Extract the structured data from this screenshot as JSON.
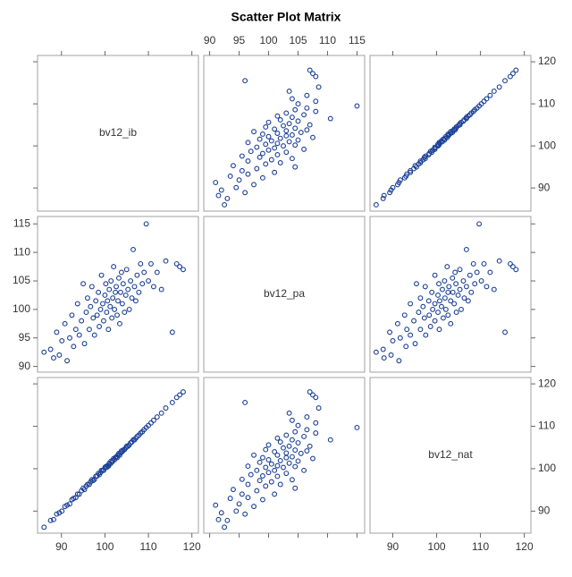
{
  "chart_data": {
    "type": "scatter_matrix",
    "title": "Scatter Plot Matrix",
    "color": "#1a3f96",
    "variables": [
      {
        "name": "bv12_ib",
        "lim": [
          84.5,
          121.5
        ],
        "ticks": [
          90,
          100,
          110,
          120
        ],
        "values": [
          86.0,
          87.5,
          88.2,
          88.9,
          89.5,
          90.1,
          90.8,
          91.3,
          91.9,
          92.4,
          92.8,
          93.3,
          93.7,
          94.1,
          94.6,
          95.0,
          95.3,
          95.7,
          96.0,
          96.4,
          96.7,
          97.0,
          97.3,
          97.6,
          97.9,
          98.2,
          98.5,
          98.7,
          99.0,
          99.2,
          99.5,
          99.7,
          100.0,
          100.2,
          100.4,
          100.6,
          100.8,
          101.0,
          101.2,
          101.4,
          101.6,
          101.8,
          102.0,
          102.2,
          102.4,
          102.6,
          102.8,
          103.0,
          103.2,
          103.4,
          103.6,
          103.8,
          104.0,
          104.2,
          104.5,
          104.8,
          105.0,
          105.3,
          105.6,
          105.9,
          106.2,
          106.5,
          106.8,
          107.1,
          107.4,
          107.8,
          108.2,
          108.6,
          109.0,
          109.5,
          110.0,
          110.6,
          111.2,
          112.0,
          113.0,
          114.0,
          115.5,
          116.5,
          117.2,
          118.0
        ]
      },
      {
        "name": "bv12_pa",
        "lim": [
          89,
          116.3
        ],
        "ticks": [
          90,
          95,
          100,
          105,
          110,
          115
        ],
        "values": [
          92.5,
          93.0,
          91.5,
          96.0,
          92.0,
          94.5,
          97.5,
          91.0,
          95.0,
          99.0,
          93.5,
          96.5,
          101.0,
          95.5,
          98.0,
          104.5,
          94.0,
          99.5,
          102.0,
          96.5,
          100.5,
          104.0,
          98.5,
          95.5,
          101.5,
          99.0,
          103.0,
          97.0,
          100.0,
          106.0,
          101.0,
          98.0,
          102.5,
          104.5,
          99.5,
          101.5,
          96.5,
          103.5,
          100.5,
          105.0,
          98.5,
          102.0,
          107.5,
          100.0,
          103.0,
          104.0,
          99.0,
          101.5,
          105.5,
          97.5,
          103.0,
          106.5,
          101.0,
          104.5,
          99.5,
          102.5,
          107.0,
          103.5,
          100.0,
          105.0,
          102.0,
          110.5,
          104.0,
          101.5,
          106.0,
          103.0,
          108.0,
          104.5,
          106.5,
          115.0,
          105.0,
          108.0,
          104.0,
          106.5,
          103.5,
          108.5,
          96.0,
          108.0,
          107.5,
          107.0
        ]
      },
      {
        "name": "bv12_nat",
        "lim": [
          84.8,
          121.5
        ],
        "ticks": [
          90,
          100,
          110,
          120
        ],
        "values": [
          86.2,
          87.8,
          88.0,
          89.3,
          89.6,
          90.0,
          91.1,
          91.4,
          91.7,
          92.7,
          93.0,
          93.2,
          94.0,
          94.0,
          94.8,
          95.4,
          95.1,
          95.9,
          96.3,
          96.3,
          96.9,
          97.4,
          97.2,
          97.5,
          98.2,
          98.3,
          98.9,
          98.6,
          99.1,
          99.6,
          99.6,
          99.6,
          100.3,
          100.5,
          100.3,
          100.7,
          100.6,
          101.3,
          101.1,
          101.8,
          101.5,
          101.9,
          102.4,
          102.1,
          102.6,
          102.8,
          102.6,
          103.2,
          103.6,
          103.2,
          103.7,
          104.2,
          104.0,
          104.4,
          104.5,
          104.9,
          105.3,
          105.3,
          105.6,
          106.1,
          106.3,
          106.8,
          106.8,
          107.2,
          107.6,
          107.9,
          108.4,
          108.7,
          109.2,
          109.7,
          110.2,
          110.8,
          111.4,
          112.2,
          113.1,
          114.3,
          115.6,
          116.8,
          117.4,
          118.1
        ]
      }
    ]
  }
}
